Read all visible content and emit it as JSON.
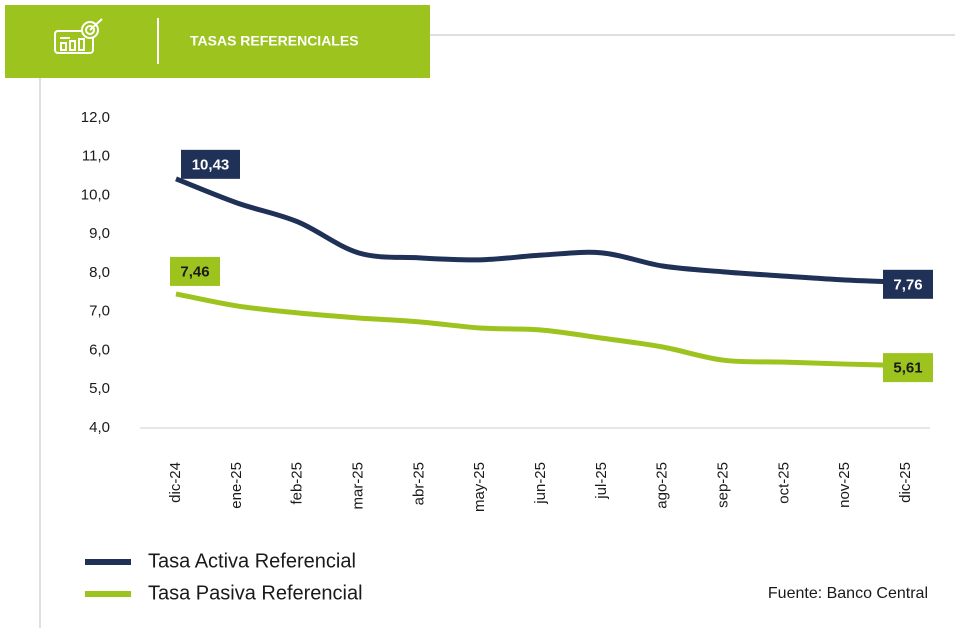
{
  "header": {
    "title": "TASAS REFERENCIALES"
  },
  "chart_data": {
    "type": "line",
    "categories": [
      "dic-24",
      "ene-25",
      "feb-25",
      "mar-25",
      "abr-25",
      "may-25",
      "jun-25",
      "jul-25",
      "ago-25",
      "sep-25",
      "oct-25",
      "nov-25",
      "dic-25"
    ],
    "series": [
      {
        "name": "Tasa Activa Referencial",
        "color": "#1f3157",
        "values": [
          10.43,
          9.81,
          9.32,
          8.52,
          8.39,
          8.34,
          8.46,
          8.52,
          8.18,
          8.03,
          7.92,
          7.82,
          7.76
        ],
        "value_labels": [
          "10,43",
          null,
          null,
          null,
          null,
          null,
          null,
          null,
          null,
          null,
          null,
          null,
          "7,76"
        ]
      },
      {
        "name": "Tasa Pasiva Referencial",
        "color": "#9dc31f",
        "values": [
          7.46,
          7.15,
          6.97,
          6.84,
          6.74,
          6.58,
          6.53,
          6.32,
          6.09,
          5.75,
          5.7,
          5.65,
          5.61
        ],
        "value_labels": [
          "7,46",
          null,
          null,
          null,
          null,
          null,
          null,
          null,
          null,
          null,
          null,
          null,
          "5,61"
        ]
      }
    ],
    "ylim": [
      4,
      12
    ],
    "yticks": [
      {
        "value": 4,
        "label": "4,0"
      },
      {
        "value": 5,
        "label": "5,0"
      },
      {
        "value": 6,
        "label": "6,0"
      },
      {
        "value": 7,
        "label": "7,0"
      },
      {
        "value": 8,
        "label": "8,0"
      },
      {
        "value": 9,
        "label": "9,0"
      },
      {
        "value": 10,
        "label": "10,0"
      },
      {
        "value": 11,
        "label": "11,0"
      },
      {
        "value": 12,
        "label": "12,0"
      }
    ],
    "legend": "bottom-left",
    "source": "Fuente: Banco Central"
  }
}
